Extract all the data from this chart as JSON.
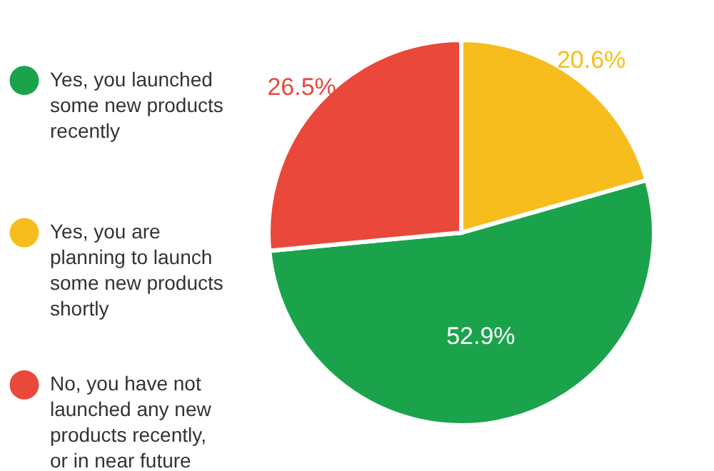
{
  "chart_data": {
    "type": "pie",
    "categories": [
      "Yes, you launched some new products recently",
      "Yes, you are planning to launch some new products shortly",
      "No, you have not launched any new products recently, or in near future"
    ],
    "values": [
      52.9,
      20.6,
      26.5
    ],
    "colors": [
      "#1ba34c",
      "#f6bd1c",
      "#e9483a"
    ],
    "value_labels": [
      "52.9%",
      "20.6%",
      "26.5%"
    ],
    "legend": "left"
  }
}
